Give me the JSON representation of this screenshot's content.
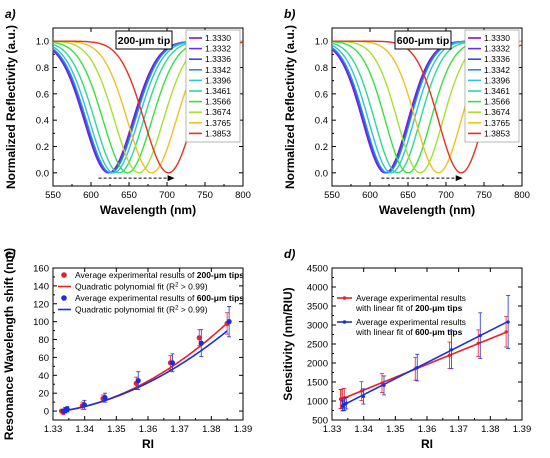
{
  "chart_data": [
    {
      "panel": "a)",
      "type": "line",
      "tag_label": "200-μm tip",
      "xlabel": "Wavelength (nm)",
      "ylabel": "Normalized Reflectivity (a.u.)",
      "xlim": [
        550,
        800
      ],
      "ylim": [
        -0.1,
        1.1
      ],
      "xticks": [
        "550",
        "600",
        "650",
        "700",
        "750",
        "800"
      ],
      "yticks": [
        "0.0",
        "0.2",
        "0.4",
        "0.6",
        "0.8",
        "1.0"
      ],
      "legend_position": "right",
      "series_width": 45,
      "shift_arrow": {
        "from": 610,
        "to": 710
      },
      "series": [
        {
          "name": "1.3330",
          "dip": 623,
          "color": "#8b10c8"
        },
        {
          "name": "1.3332",
          "dip": 624,
          "color": "#6a2ee0"
        },
        {
          "name": "1.3336",
          "dip": 625,
          "color": "#2a50e8"
        },
        {
          "name": "1.3342",
          "dip": 626,
          "color": "#2a88e8"
        },
        {
          "name": "1.3396",
          "dip": 630,
          "color": "#30c0e0"
        },
        {
          "name": "1.3461",
          "dip": 637,
          "color": "#30d890"
        },
        {
          "name": "1.3566",
          "dip": 648,
          "color": "#38e040"
        },
        {
          "name": "1.3674",
          "dip": 663,
          "color": "#a8e030"
        },
        {
          "name": "1.3765",
          "dip": 680,
          "color": "#f0c020"
        },
        {
          "name": "1.3853",
          "dip": 702,
          "color": "#e83020"
        }
      ]
    },
    {
      "panel": "b)",
      "type": "line",
      "tag_label": "600-μm tip",
      "xlabel": "Wavelength (nm)",
      "ylabel": "Normalized Reflectivity (a.u.)",
      "xlim": [
        550,
        800
      ],
      "ylim": [
        -0.1,
        1.1
      ],
      "xticks": [
        "550",
        "600",
        "650",
        "700",
        "750",
        "800"
      ],
      "yticks": [
        "0.0",
        "0.2",
        "0.4",
        "0.6",
        "0.8",
        "1.0"
      ],
      "legend_position": "right",
      "series_width": 42,
      "shift_arrow": {
        "from": 615,
        "to": 722
      },
      "series": [
        {
          "name": "1.3330",
          "dip": 620,
          "color": "#8b10c8"
        },
        {
          "name": "1.3332",
          "dip": 621,
          "color": "#6a2ee0"
        },
        {
          "name": "1.3336",
          "dip": 622,
          "color": "#2a50e8"
        },
        {
          "name": "1.3342",
          "dip": 623,
          "color": "#2a88e8"
        },
        {
          "name": "1.3396",
          "dip": 628,
          "color": "#30c0e0"
        },
        {
          "name": "1.3461",
          "dip": 636,
          "color": "#30d890"
        },
        {
          "name": "1.3566",
          "dip": 650,
          "color": "#38e040"
        },
        {
          "name": "1.3674",
          "dip": 666,
          "color": "#a8e030"
        },
        {
          "name": "1.3765",
          "dip": 690,
          "color": "#f0c020"
        },
        {
          "name": "1.3853",
          "dip": 720,
          "color": "#e83020"
        }
      ]
    },
    {
      "panel": "c)",
      "type": "scatter",
      "xlabel": "RI",
      "ylabel": "Resonance Wavelength shift (nm)",
      "xlim": [
        1.33,
        1.39
      ],
      "ylim": [
        -10,
        160
      ],
      "xticks": [
        "1.33",
        "1.34",
        "1.35",
        "1.36",
        "1.37",
        "1.38",
        "1.39"
      ],
      "yticks": [
        "0",
        "20",
        "40",
        "60",
        "80",
        "100",
        "120",
        "140",
        "160"
      ],
      "legend_position": "top-left",
      "x": [
        1.333,
        1.3332,
        1.3336,
        1.3342,
        1.3396,
        1.3461,
        1.3566,
        1.3674,
        1.3765,
        1.3853
      ],
      "series": [
        {
          "legend": [
            "Average experimental results of ",
            "200-μm tips"
          ],
          "kind": "points",
          "color": "#e8202a",
          "values": [
            0,
            0,
            -1,
            1,
            6,
            14,
            31,
            54,
            82,
            98
          ],
          "errors": [
            1,
            1,
            3,
            3,
            4,
            4,
            7,
            8,
            9,
            12
          ]
        },
        {
          "legend": [
            "Quadratic polynomial fit (R",
            "2",
            " > 0.99)"
          ],
          "kind": "fit",
          "color": "#e8202a",
          "coef": [
            2.6,
            5.4
          ]
        },
        {
          "legend": [
            "Average experimental results of ",
            "600-μm tips"
          ],
          "kind": "points",
          "color": "#1a2ee0",
          "values": [
            0,
            0,
            1,
            2,
            7,
            15,
            34,
            54,
            76,
            100
          ],
          "errors": [
            1,
            1,
            3,
            3,
            5,
            5,
            10,
            10,
            15,
            17
          ]
        },
        {
          "legend": [
            "Quadratic polynomial fit (R",
            "2",
            " > 0.99)"
          ],
          "kind": "fit",
          "color": "#1a2ee0",
          "coef": [
            2.2,
            5.8
          ]
        }
      ]
    },
    {
      "panel": "d)",
      "type": "line",
      "xlabel": "RI",
      "ylabel": "Sensitivity (nm/RIU)",
      "xlim": [
        1.33,
        1.39
      ],
      "ylim": [
        500,
        4500
      ],
      "xticks": [
        "1.33",
        "1.34",
        "1.35",
        "1.36",
        "1.37",
        "1.38",
        "1.39"
      ],
      "yticks": [
        "500",
        "1000",
        "1500",
        "2000",
        "2500",
        "3000",
        "3500",
        "4000",
        "4500"
      ],
      "legend_position": "top-left",
      "x": [
        1.333,
        1.3332,
        1.3336,
        1.3342,
        1.3396,
        1.3461,
        1.3566,
        1.3674,
        1.3765,
        1.3853
      ],
      "series": [
        {
          "legend": [
            "Average experimental results",
            "with linear fit of ",
            "200-μm tips"
          ],
          "color": "#e8202a",
          "values": [
            1050,
            1055,
            1065,
            1085,
            1260,
            1470,
            1850,
            2200,
            2520,
            2820
          ],
          "errors": [
            250,
            250,
            250,
            250,
            250,
            250,
            300,
            350,
            350,
            400
          ]
        },
        {
          "legend": [
            "Average experimental results",
            "with linear fit of ",
            "600-μm tips"
          ],
          "color": "#1a2ee0",
          "values": [
            870,
            880,
            905,
            940,
            1120,
            1410,
            1880,
            2350,
            2720,
            3080
          ],
          "errors": [
            130,
            130,
            150,
            150,
            200,
            250,
            350,
            500,
            600,
            700
          ]
        }
      ]
    }
  ]
}
